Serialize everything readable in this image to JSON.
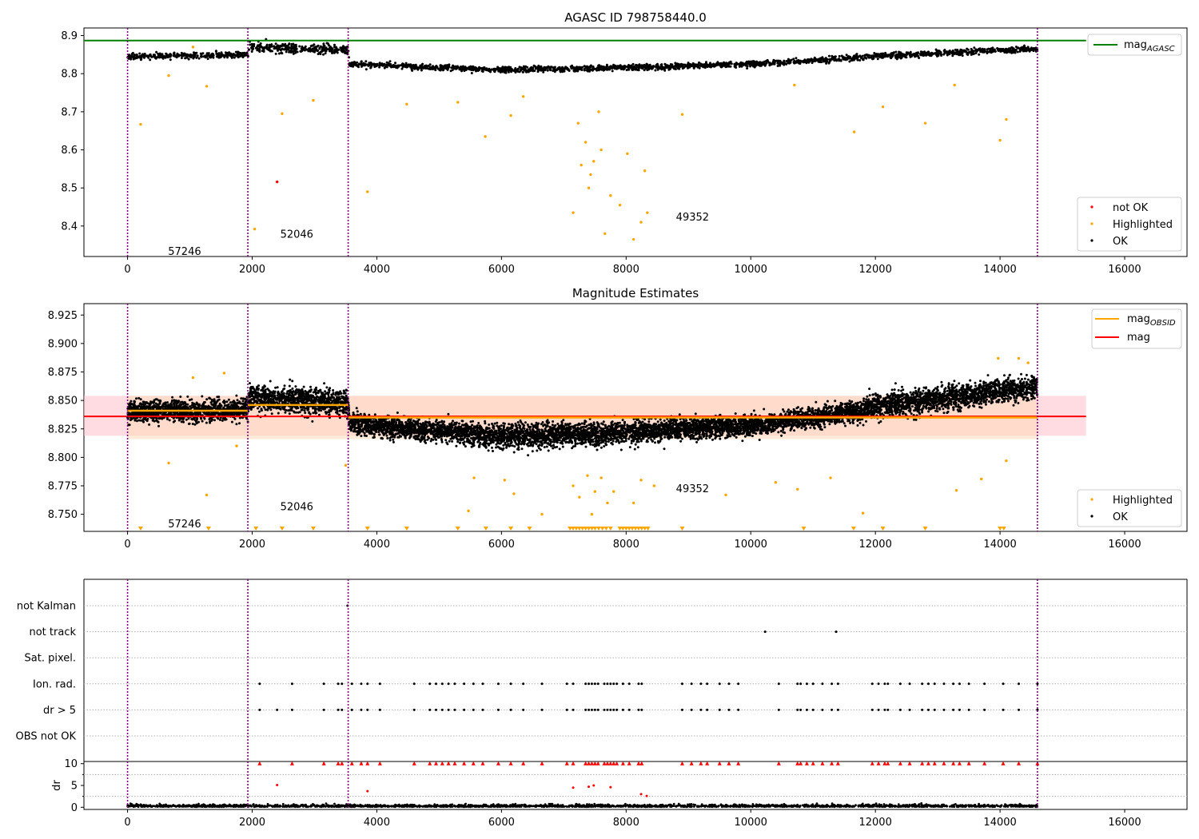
{
  "figure": {
    "panel1_title": "AGASC ID 798758440.0",
    "panel2_title": "Magnitude Estimates"
  },
  "colors": {
    "ok": "#000000",
    "not_ok": "#ff0000",
    "highlighted": "#ffa500",
    "mag_agasc": "#008000",
    "mag_obsid": "#ffa500",
    "mag": "#ff0000",
    "obs_boundary": "#800080",
    "band_mag": "#ffc0cb",
    "band_obsid": "#ffdab9"
  },
  "chart_data": [
    {
      "type": "scatter",
      "title": "AGASC ID 798758440.0",
      "xlabel": "",
      "ylabel": "",
      "xlim": [
        -700,
        17000
      ],
      "ylim": [
        8.32,
        8.92
      ],
      "x_ticks": [
        "0",
        "2000",
        "4000",
        "6000",
        "8000",
        "10000",
        "12000",
        "14000",
        "16000"
      ],
      "y_ticks": [
        "8.4",
        "8.5",
        "8.6",
        "8.7",
        "8.8",
        "8.9"
      ],
      "mag_agasc": 8.887,
      "obs_boundaries": [
        0,
        1930,
        3540,
        14600
      ],
      "obsid_annotations": [
        {
          "label": "57246",
          "x": 650,
          "y": 8.335
        },
        {
          "label": "52046",
          "x": 2450,
          "y": 8.38
        },
        {
          "label": "49352",
          "x": 8800,
          "y": 8.425
        }
      ],
      "series": [
        {
          "name": "OK",
          "trend": [
            [
              0,
              8.845
            ],
            [
              1930,
              8.85
            ],
            [
              1950,
              8.87
            ],
            [
              3540,
              8.862
            ],
            [
              3560,
              8.826
            ],
            [
              6000,
              8.81
            ],
            [
              8000,
              8.815
            ],
            [
              10000,
              8.825
            ],
            [
              12000,
              8.845
            ],
            [
              14000,
              8.862
            ],
            [
              14600,
              8.865
            ]
          ]
        },
        {
          "name": "Highlighted",
          "points": [
            [
              210,
              8.667
            ],
            [
              660,
              8.795
            ],
            [
              1050,
              8.87
            ],
            [
              1270,
              8.767
            ],
            [
              2040,
              8.392
            ],
            [
              2480,
              8.695
            ],
            [
              2980,
              8.73
            ],
            [
              3850,
              8.49
            ],
            [
              4480,
              8.72
            ],
            [
              5300,
              8.725
            ],
            [
              5740,
              8.635
            ],
            [
              6150,
              8.69
            ],
            [
              6350,
              8.74
            ],
            [
              7150,
              8.435
            ],
            [
              7230,
              8.67
            ],
            [
              7280,
              8.56
            ],
            [
              7350,
              8.62
            ],
            [
              7400,
              8.5
            ],
            [
              7430,
              8.535
            ],
            [
              7480,
              8.57
            ],
            [
              7560,
              8.7
            ],
            [
              7600,
              8.6
            ],
            [
              7660,
              8.38
            ],
            [
              7750,
              8.48
            ],
            [
              7900,
              8.455
            ],
            [
              8020,
              8.59
            ],
            [
              8120,
              8.365
            ],
            [
              8240,
              8.41
            ],
            [
              8300,
              8.545
            ],
            [
              8340,
              8.435
            ],
            [
              8900,
              8.693
            ],
            [
              10700,
              8.77
            ],
            [
              11660,
              8.647
            ],
            [
              12120,
              8.713
            ],
            [
              12800,
              8.67
            ],
            [
              13270,
              8.77
            ],
            [
              14000,
              8.625
            ],
            [
              14100,
              8.68
            ]
          ]
        },
        {
          "name": "not OK",
          "points": [
            [
              2400,
              8.516
            ]
          ]
        }
      ],
      "legends": [
        {
          "position": "top-right",
          "entries": [
            "mag_AGASC"
          ]
        },
        {
          "position": "lower-right",
          "entries": [
            "not OK",
            "Highlighted",
            "OK"
          ]
        }
      ]
    },
    {
      "type": "scatter",
      "title": "Magnitude Estimates",
      "xlabel": "",
      "ylabel": "",
      "xlim": [
        -700,
        17000
      ],
      "ylim": [
        8.735,
        8.935
      ],
      "x_ticks": [
        "0",
        "2000",
        "4000",
        "6000",
        "8000",
        "10000",
        "12000",
        "14000",
        "16000"
      ],
      "y_ticks": [
        "8.750",
        "8.775",
        "8.800",
        "8.825",
        "8.850",
        "8.875",
        "8.900",
        "8.925"
      ],
      "mag": 8.836,
      "mag_band": [
        8.819,
        8.854
      ],
      "mag_obsid": [
        {
          "x0": 0,
          "x1": 1930,
          "value": 8.841
        },
        {
          "x0": 1930,
          "x1": 3540,
          "value": 8.846
        },
        {
          "x0": 3540,
          "x1": 14600,
          "value": 8.835
        }
      ],
      "mag_obsid_band": [
        8.816,
        8.854
      ],
      "obs_boundaries": [
        0,
        1930,
        3540,
        14600
      ],
      "obsid_annotations": [
        {
          "label": "57246",
          "x": 650,
          "y": 8.742
        },
        {
          "label": "52046",
          "x": 2450,
          "y": 8.757
        },
        {
          "label": "49352",
          "x": 8800,
          "y": 8.773
        }
      ],
      "highlighted_below_range_x": [
        210,
        1300,
        2060,
        2480,
        2980,
        3850,
        4480,
        5300,
        5750,
        6150,
        6450,
        7100,
        7150,
        7200,
        7250,
        7300,
        7350,
        7400,
        7450,
        7500,
        7560,
        7620,
        7680,
        7750,
        7900,
        7950,
        8000,
        8050,
        8100,
        8150,
        8200,
        8250,
        8300,
        8350,
        8900,
        10850,
        11650,
        12120,
        12800,
        14000,
        14060
      ],
      "series": [
        {
          "name": "OK",
          "trend": [
            [
              0,
              8.84
            ],
            [
              1930,
              8.842
            ],
            [
              1950,
              8.852
            ],
            [
              3540,
              8.848
            ],
            [
              3560,
              8.83
            ],
            [
              6000,
              8.818
            ],
            [
              8000,
              8.822
            ],
            [
              10000,
              8.828
            ],
            [
              11700,
              8.84
            ],
            [
              12000,
              8.845
            ],
            [
              14000,
              8.858
            ],
            [
              14600,
              8.862
            ]
          ]
        },
        {
          "name": "Highlighted",
          "points": [
            [
              660,
              8.795
            ],
            [
              1050,
              8.87
            ],
            [
              1270,
              8.767
            ],
            [
              1550,
              8.874
            ],
            [
              1750,
              8.81
            ],
            [
              3500,
              8.793
            ],
            [
              5470,
              8.753
            ],
            [
              5560,
              8.782
            ],
            [
              6050,
              8.78
            ],
            [
              6200,
              8.768
            ],
            [
              6650,
              8.75
            ],
            [
              7150,
              8.775
            ],
            [
              7250,
              8.765
            ],
            [
              7380,
              8.784
            ],
            [
              7450,
              8.75
            ],
            [
              7500,
              8.77
            ],
            [
              7600,
              8.782
            ],
            [
              7700,
              8.76
            ],
            [
              7800,
              8.77
            ],
            [
              8120,
              8.76
            ],
            [
              8240,
              8.78
            ],
            [
              8450,
              8.775
            ],
            [
              9600,
              8.767
            ],
            [
              10400,
              8.778
            ],
            [
              10750,
              8.772
            ],
            [
              11280,
              8.782
            ],
            [
              11800,
              8.751
            ],
            [
              13300,
              8.771
            ],
            [
              13700,
              8.781
            ],
            [
              13970,
              8.887
            ],
            [
              14100,
              8.797
            ],
            [
              14300,
              8.887
            ],
            [
              14450,
              8.883
            ]
          ]
        }
      ],
      "legends": [
        {
          "position": "top-right",
          "entries": [
            "mag_OBSID",
            "mag"
          ]
        },
        {
          "position": "lower-right",
          "entries": [
            "Highlighted",
            "OK"
          ]
        }
      ]
    },
    {
      "type": "scatter",
      "title": "",
      "xlabel": "",
      "ylabel": "",
      "xlim": [
        -700,
        17000
      ],
      "y_categories": [
        "OBS not OK",
        "dr > 5",
        "Ion. rad.",
        "Sat. pixel.",
        "not track",
        "not Kalman"
      ],
      "obs_boundaries": [
        0,
        1930,
        3540,
        14600
      ],
      "flag_points": {
        "not Kalman": [
          3530
        ],
        "not track": [
          10230,
          11370
        ],
        "Sat. pixel.": [],
        "Ion. rad.": [
          2120,
          2640,
          3150,
          3380,
          3440,
          3600,
          3750,
          3850,
          4050,
          4600,
          4850,
          4950,
          5050,
          5150,
          5250,
          5400,
          5550,
          5700,
          5950,
          6150,
          6350,
          6650,
          7050,
          7150,
          7350,
          7400,
          7450,
          7500,
          7550,
          7650,
          7700,
          7750,
          7800,
          7850,
          7950,
          8050,
          8200,
          8250,
          8900,
          9050,
          9200,
          9300,
          9500,
          9650,
          9800,
          10450,
          10750,
          10800,
          10900,
          11000,
          11150,
          11300,
          11400,
          11950,
          12050,
          12150,
          12200,
          12400,
          12550,
          12750,
          12850,
          12950,
          13100,
          13250,
          13350,
          13500,
          13750,
          14050,
          14300,
          14600
        ],
        "dr > 5": [
          2120,
          2400,
          2640,
          3150,
          3380,
          3440,
          3600,
          3750,
          3850,
          4050,
          4600,
          4850,
          4950,
          5050,
          5150,
          5250,
          5400,
          5550,
          5700,
          5950,
          6150,
          6350,
          6650,
          7050,
          7150,
          7350,
          7400,
          7450,
          7500,
          7550,
          7650,
          7700,
          7750,
          7800,
          7850,
          7950,
          8050,
          8200,
          8250,
          8900,
          9050,
          9200,
          9300,
          9500,
          9650,
          9800,
          10450,
          10750,
          10800,
          10900,
          11000,
          11150,
          11300,
          11400,
          11950,
          12050,
          12150,
          12200,
          12400,
          12550,
          12750,
          12850,
          12950,
          13100,
          13250,
          13350,
          13500,
          13750,
          14050,
          14300,
          14600
        ],
        "OBS not OK": []
      }
    },
    {
      "type": "scatter",
      "title": "",
      "xlabel": "",
      "ylabel": "dr",
      "xlim": [
        -700,
        17000
      ],
      "ylim": [
        -0.5,
        10.5
      ],
      "x_ticks": [
        "0",
        "2000",
        "4000",
        "6000",
        "8000",
        "10000",
        "12000",
        "14000",
        "16000"
      ],
      "y_ticks": [
        "0",
        "5",
        "10"
      ],
      "clip_value": 10,
      "obs_boundaries": [
        0,
        1930,
        3540,
        14600
      ],
      "series": [
        {
          "name": "OK",
          "baseline": 0.5
        },
        {
          "name": "not OK",
          "points": [
            [
              2400,
              5.1
            ],
            [
              3850,
              3.7
            ],
            [
              7150,
              4.5
            ],
            [
              7400,
              4.7
            ],
            [
              7480,
              5.0
            ],
            [
              7750,
              4.6
            ],
            [
              8240,
              3.0
            ],
            [
              8330,
              2.6
            ]
          ]
        },
        {
          "name": "not OK (clipped at 10)",
          "x": [
            2120,
            2640,
            3150,
            3380,
            3440,
            3600,
            3750,
            3850,
            4050,
            4600,
            4850,
            4950,
            5050,
            5150,
            5250,
            5400,
            5550,
            5700,
            5950,
            6150,
            6350,
            6650,
            7050,
            7150,
            7350,
            7400,
            7450,
            7500,
            7550,
            7650,
            7700,
            7750,
            7800,
            7850,
            7950,
            8050,
            8200,
            8250,
            8900,
            9050,
            9200,
            9300,
            9500,
            9650,
            9800,
            10450,
            10750,
            10800,
            10900,
            11000,
            11150,
            11300,
            11400,
            11950,
            12050,
            12150,
            12200,
            12400,
            12550,
            12750,
            12850,
            12950,
            13100,
            13250,
            13350,
            13500,
            13750,
            14050,
            14300,
            14600
          ]
        }
      ]
    }
  ]
}
